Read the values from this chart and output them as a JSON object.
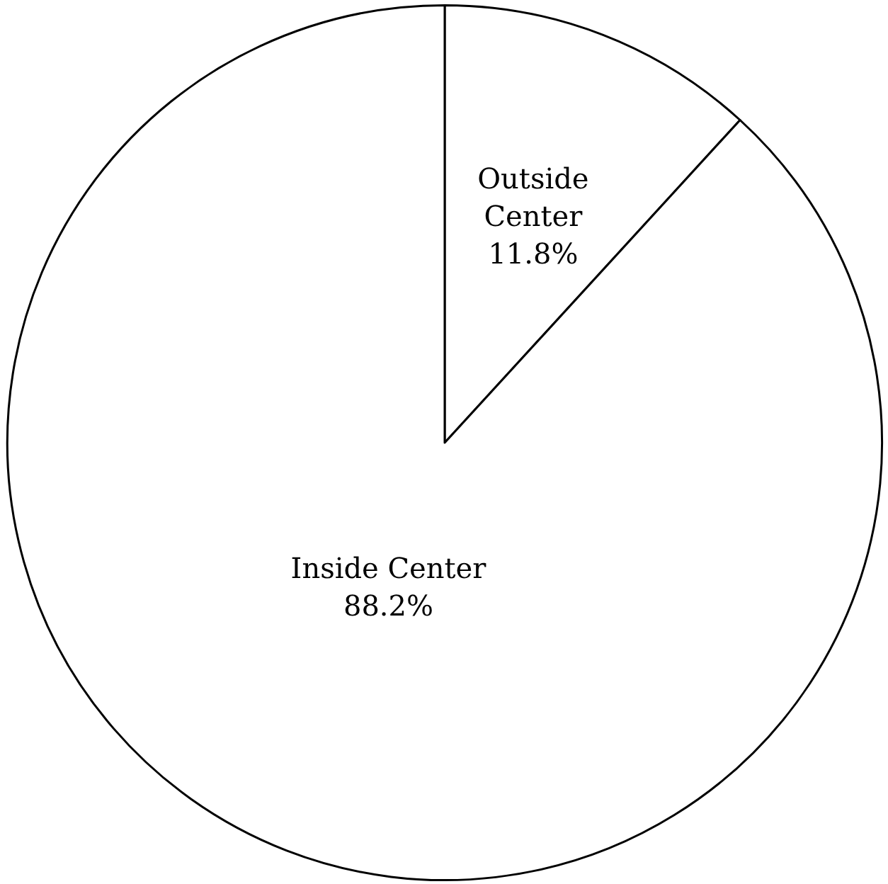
{
  "chart_data": {
    "type": "pie",
    "categories": [
      "Outside Center",
      "Inside Center"
    ],
    "values": [
      11.8,
      88.2
    ],
    "colors": [
      "#ffffff",
      "#ffffff"
    ],
    "value_labels": [
      "11.8%",
      "88.2%"
    ]
  }
}
